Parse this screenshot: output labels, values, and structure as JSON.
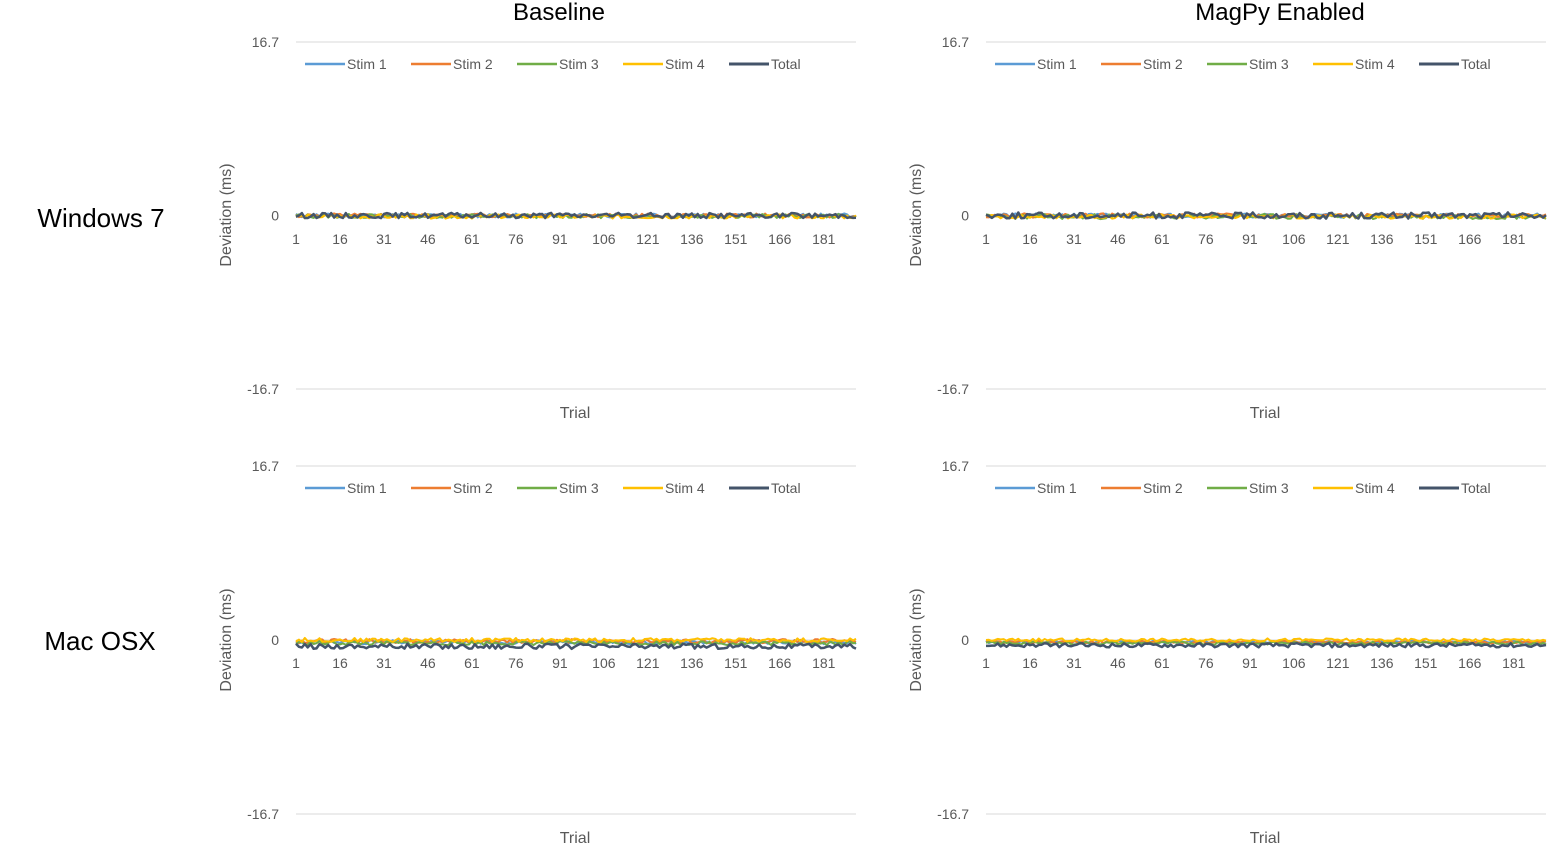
{
  "column_titles": [
    "Baseline",
    "MagPy Enabled"
  ],
  "row_labels": [
    "Windows 7",
    "Mac OSX"
  ],
  "series_colors": {
    "Stim 1": "#5b9bd5",
    "Stim 2": "#ed7d31",
    "Stim 3": "#70ad47",
    "Stim 4": "#ffc000",
    "Total": "#44546a"
  },
  "chart_data": [
    {
      "type": "line",
      "title": "Baseline",
      "row": "Windows 7",
      "xlabel": "Trial",
      "ylabel": "Deviation (ms)",
      "ylim": [
        -16.7,
        16.7
      ],
      "yticks": [
        "16.7",
        "0",
        "-16.7"
      ],
      "xlim": [
        1,
        192
      ],
      "xticks": [
        "1",
        "16",
        "31",
        "46",
        "61",
        "76",
        "91",
        "106",
        "121",
        "136",
        "151",
        "166",
        "181"
      ],
      "legend": "top-left",
      "series": [
        {
          "name": "Stim 1",
          "baseline": 0.0,
          "noise": 0.2,
          "seed": 11
        },
        {
          "name": "Stim 2",
          "baseline": 0.0,
          "noise": 0.2,
          "seed": 12
        },
        {
          "name": "Stim 3",
          "baseline": -0.05,
          "noise": 0.2,
          "seed": 13
        },
        {
          "name": "Stim 4",
          "baseline": -0.1,
          "noise": 0.2,
          "seed": 14
        },
        {
          "name": "Total",
          "baseline": 0.0,
          "noise": 0.25,
          "seed": 15
        }
      ]
    },
    {
      "type": "line",
      "title": "MagPy Enabled",
      "row": "Windows 7",
      "xlabel": "Trial",
      "ylabel": "Deviation (ms)",
      "ylim": [
        -16.7,
        16.7
      ],
      "yticks": [
        "16.7",
        "0",
        "-16.7"
      ],
      "xlim": [
        1,
        192
      ],
      "xticks": [
        "1",
        "16",
        "31",
        "46",
        "61",
        "76",
        "91",
        "106",
        "121",
        "136",
        "151",
        "166",
        "181"
      ],
      "legend": "top-left",
      "series": [
        {
          "name": "Stim 1",
          "baseline": 0.0,
          "noise": 0.2,
          "seed": 21
        },
        {
          "name": "Stim 2",
          "baseline": 0.0,
          "noise": 0.2,
          "seed": 22
        },
        {
          "name": "Stim 3",
          "baseline": -0.1,
          "noise": 0.25,
          "seed": 23
        },
        {
          "name": "Stim 4",
          "baseline": -0.1,
          "noise": 0.2,
          "seed": 24
        },
        {
          "name": "Total",
          "baseline": 0.0,
          "noise": 0.3,
          "seed": 25
        }
      ]
    },
    {
      "type": "line",
      "title": "Baseline",
      "row": "Mac OSX",
      "xlabel": "Trial",
      "ylabel": "Deviation (ms)",
      "ylim": [
        -16.7,
        16.7
      ],
      "yticks": [
        "16.7",
        "0",
        "-16.7"
      ],
      "xlim": [
        1,
        192
      ],
      "xticks": [
        "1",
        "16",
        "31",
        "46",
        "61",
        "76",
        "91",
        "106",
        "121",
        "136",
        "151",
        "166",
        "181"
      ],
      "legend": "top-left",
      "series": [
        {
          "name": "Stim 1",
          "baseline": -0.2,
          "noise": 0.2,
          "seed": 31
        },
        {
          "name": "Stim 2",
          "baseline": -0.1,
          "noise": 0.2,
          "seed": 32
        },
        {
          "name": "Stim 3",
          "baseline": -0.3,
          "noise": 0.2,
          "seed": 33
        },
        {
          "name": "Stim 4",
          "baseline": 0.0,
          "noise": 0.2,
          "seed": 34
        },
        {
          "name": "Total",
          "baseline": -0.6,
          "noise": 0.25,
          "seed": 35
        }
      ]
    },
    {
      "type": "line",
      "title": "MagPy Enabled",
      "row": "Mac OSX",
      "xlabel": "Trial",
      "ylabel": "Deviation (ms)",
      "ylim": [
        -16.7,
        16.7
      ],
      "yticks": [
        "16.7",
        "0",
        "-16.7"
      ],
      "xlim": [
        1,
        192
      ],
      "xticks": [
        "1",
        "16",
        "31",
        "46",
        "61",
        "76",
        "91",
        "106",
        "121",
        "136",
        "151",
        "166",
        "181"
      ],
      "legend": "top-left",
      "series": [
        {
          "name": "Stim 1",
          "baseline": -0.2,
          "noise": 0.15,
          "seed": 41
        },
        {
          "name": "Stim 2",
          "baseline": -0.2,
          "noise": 0.15,
          "seed": 42
        },
        {
          "name": "Stim 3",
          "baseline": -0.3,
          "noise": 0.15,
          "seed": 43
        },
        {
          "name": "Stim 4",
          "baseline": 0.0,
          "noise": 0.15,
          "seed": 44
        },
        {
          "name": "Total",
          "baseline": -0.5,
          "noise": 0.2,
          "seed": 45
        }
      ]
    }
  ]
}
